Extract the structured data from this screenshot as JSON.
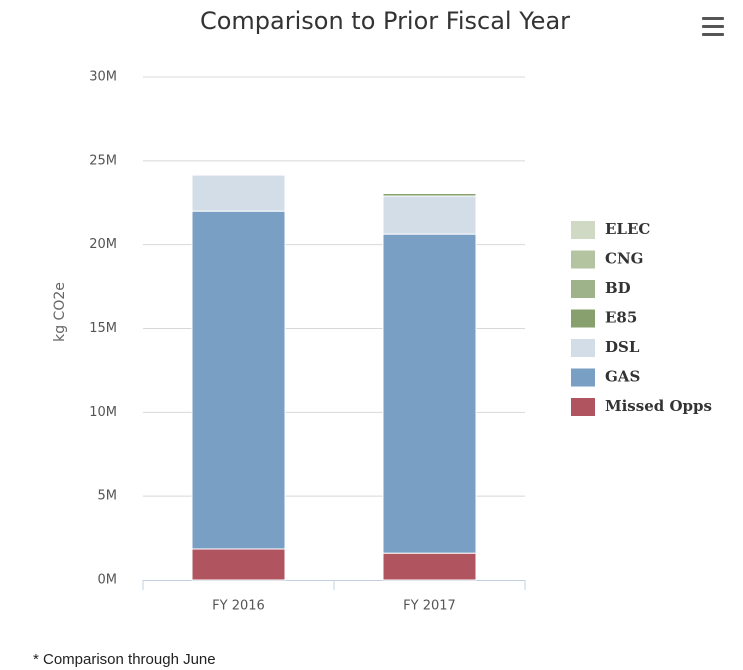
{
  "chart_data": {
    "type": "stacked_bar",
    "title": "Comparison to Prior Fiscal Year",
    "y_axis_label": "kg CO2e",
    "categories": [
      "FY 2016",
      "FY 2017"
    ],
    "series": [
      {
        "name": "Missed Opps",
        "color": "#b05560",
        "values": [
          1850000,
          1600000
        ]
      },
      {
        "name": "GAS",
        "color": "#7a9fc4",
        "values": [
          20150000,
          19030000
        ]
      },
      {
        "name": "DSL",
        "color": "#d2dde8",
        "values": [
          2150000,
          2270000
        ]
      },
      {
        "name": "E85",
        "color": "#87a06e",
        "values": [
          0,
          150000
        ]
      },
      {
        "name": "BD",
        "color": "#9fb38a",
        "values": [
          0,
          0
        ]
      },
      {
        "name": "CNG",
        "color": "#b5c4a0",
        "values": [
          0,
          0
        ]
      },
      {
        "name": "ELEC",
        "color": "#d0d9c4",
        "values": [
          0,
          0
        ]
      }
    ],
    "ylim": [
      0,
      30000000
    ],
    "yticks": [
      {
        "value": 0,
        "label": "0M"
      },
      {
        "value": 5000000,
        "label": "5M"
      },
      {
        "value": 10000000,
        "label": "10M"
      },
      {
        "value": 15000000,
        "label": "15M"
      },
      {
        "value": 20000000,
        "label": "20M"
      },
      {
        "value": 25000000,
        "label": "25M"
      },
      {
        "value": 30000000,
        "label": "30M"
      }
    ],
    "grid": true,
    "legend": "right",
    "footnote": "* Comparison through June"
  }
}
